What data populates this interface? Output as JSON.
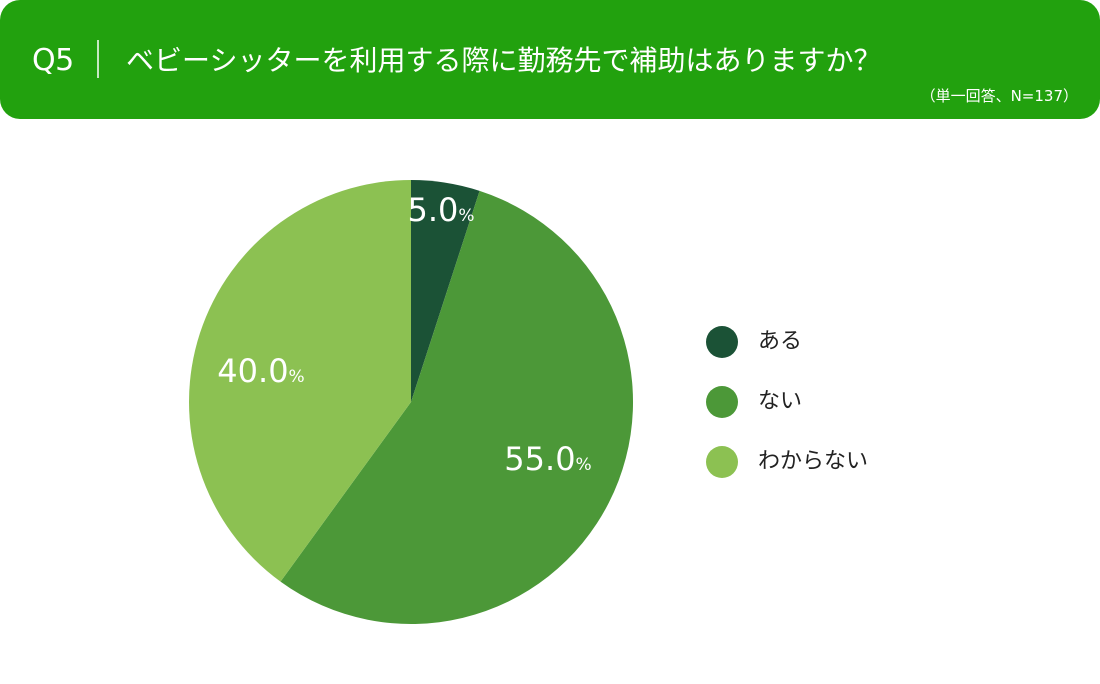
{
  "header": {
    "question_no": "Q5",
    "question": "ベビーシッターを利用する際に勤務先で補助はありますか？",
    "subtitle": "（単一回答、N=137）",
    "bg_color": "#22a10e"
  },
  "chart_data": {
    "type": "pie",
    "title": "ベビーシッターを利用する際に勤務先で補助はありますか？",
    "subtitle": "（単一回答、N=137）",
    "unit": "%",
    "categories": [
      "ある",
      "ない",
      "わからない"
    ],
    "values": [
      5.0,
      55.0,
      40.0
    ],
    "value_labels": [
      "5.0",
      "55.0",
      "40.0"
    ],
    "colors": [
      "#1b5236",
      "#4c9838",
      "#8cc152"
    ],
    "start_angle": "12 o'clock",
    "direction": "clockwise",
    "legend_position": "right"
  }
}
